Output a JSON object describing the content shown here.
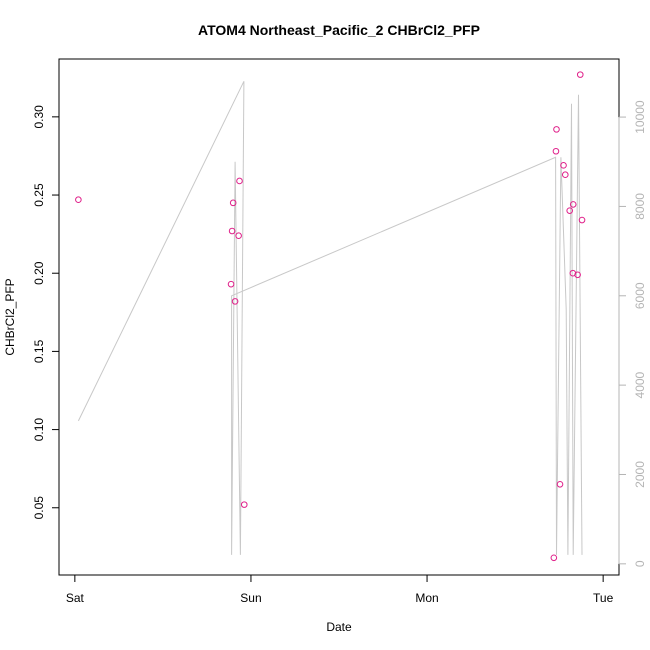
{
  "chart_data": {
    "type": "scatter",
    "title": "ATOM4 Northeast_Pacific_2 CHBrCl2_PFP",
    "xlabel": "Date",
    "ylabel": "CHBrCl2_PFP",
    "x_ticks": [
      {
        "value": 0,
        "label": "Sat"
      },
      {
        "value": 1,
        "label": "Sun"
      },
      {
        "value": 2,
        "label": "Mon"
      },
      {
        "value": 3,
        "label": "Tue"
      }
    ],
    "xlim": [
      -0.09,
      3.09
    ],
    "ylim": [
      0.007,
      0.337
    ],
    "y_ticks": [
      0.05,
      0.1,
      0.15,
      0.2,
      0.25,
      0.3
    ],
    "y_tick_labels": [
      "0.05",
      "0.10",
      "0.15",
      "0.20",
      "0.25",
      "0.30"
    ],
    "y2lim": [
      -250,
      11300
    ],
    "y2_ticks": [
      0,
      2000,
      4000,
      6000,
      8000,
      10000
    ],
    "y2_tick_labels": [
      "0",
      "2000",
      "4000",
      "6000",
      "8000",
      "10000"
    ],
    "grid": false,
    "series": [
      {
        "kind": "points",
        "axis": "left",
        "color": "#e0208a",
        "points": [
          {
            "x": 0.02,
            "y": 0.247
          },
          {
            "x": 0.887,
            "y": 0.193
          },
          {
            "x": 0.893,
            "y": 0.227
          },
          {
            "x": 0.899,
            "y": 0.245
          },
          {
            "x": 0.91,
            "y": 0.182
          },
          {
            "x": 0.93,
            "y": 0.224
          },
          {
            "x": 0.935,
            "y": 0.259
          },
          {
            "x": 0.962,
            "y": 0.052
          },
          {
            "x": 2.72,
            "y": 0.018
          },
          {
            "x": 2.732,
            "y": 0.278
          },
          {
            "x": 2.735,
            "y": 0.292
          },
          {
            "x": 2.755,
            "y": 0.065
          },
          {
            "x": 2.775,
            "y": 0.269
          },
          {
            "x": 2.785,
            "y": 0.263
          },
          {
            "x": 2.81,
            "y": 0.24
          },
          {
            "x": 2.83,
            "y": 0.244
          },
          {
            "x": 2.828,
            "y": 0.2
          },
          {
            "x": 2.855,
            "y": 0.199
          },
          {
            "x": 2.87,
            "y": 0.327
          },
          {
            "x": 2.88,
            "y": 0.234
          }
        ]
      },
      {
        "kind": "line",
        "axis": "right",
        "color": "#c8c8c8",
        "points": [
          {
            "x": 0.02,
            "y": 3200
          },
          {
            "x": 0.96,
            "y": 10800
          },
          {
            "x": 0.94,
            "y": 200
          },
          {
            "x": 0.91,
            "y": 9000
          },
          {
            "x": 0.89,
            "y": 200
          },
          {
            "x": 0.89,
            "y": 6000
          },
          {
            "x": 2.73,
            "y": 9100
          },
          {
            "x": 2.735,
            "y": 200
          },
          {
            "x": 2.76,
            "y": 9100
          },
          {
            "x": 2.79,
            "y": 5700
          },
          {
            "x": 2.8,
            "y": 200
          },
          {
            "x": 2.82,
            "y": 10300
          },
          {
            "x": 2.83,
            "y": 200
          },
          {
            "x": 2.86,
            "y": 10500
          },
          {
            "x": 2.88,
            "y": 200
          }
        ]
      }
    ]
  }
}
